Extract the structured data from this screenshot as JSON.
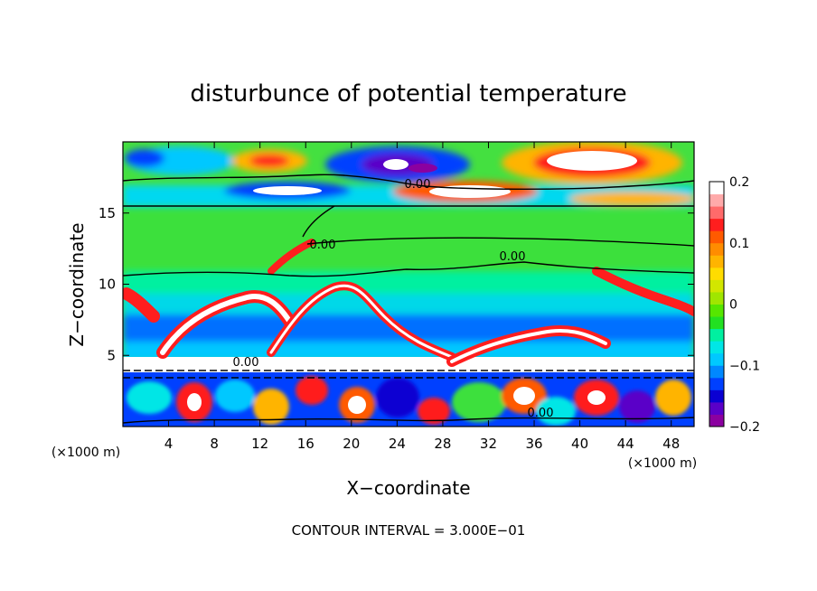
{
  "chart_data": {
    "type": "heatmap",
    "title": "disturbunce of potential temperature",
    "xlabel": "X−coordinate",
    "ylabel": "Z−coordinate",
    "x_unit_left": "(×1000 m)",
    "x_unit_right": "(×1000 m)",
    "footer": "CONTOUR INTERVAL = 3.000E−01",
    "xlim": [
      0,
      50
    ],
    "ylim": [
      0,
      20
    ],
    "x_ticks": [
      4,
      8,
      12,
      16,
      20,
      24,
      28,
      32,
      36,
      40,
      44,
      48
    ],
    "y_ticks": [
      5,
      10,
      15
    ],
    "colorbar": {
      "min": -0.2,
      "max": 0.2,
      "ticks": [
        "0.2",
        "0.1",
        "0",
        "−0.1",
        "−0.2"
      ],
      "colors": [
        "#8b00a0",
        "#5a00c8",
        "#0a00d2",
        "#0040ff",
        "#0088ff",
        "#00c8ff",
        "#00e6e6",
        "#00f0a0",
        "#22e022",
        "#56e600",
        "#a0e600",
        "#d2e600",
        "#ffdc00",
        "#ffb400",
        "#ff8c00",
        "#ff5a00",
        "#ff1e1e",
        "#ff6a6a",
        "#ffaaaa",
        "#ffffff"
      ]
    },
    "contour_labels": [
      {
        "text": "0.00",
        "x": 26,
        "y": 16.7
      },
      {
        "text": "0.00",
        "x": 17.5,
        "y": 12.5
      },
      {
        "text": "0.00",
        "x": 34,
        "y": 11.7
      },
      {
        "text": "0.00",
        "x": 10.5,
        "y": 4.5
      },
      {
        "text": "0.00",
        "x": 36,
        "y": 1
      }
    ]
  }
}
